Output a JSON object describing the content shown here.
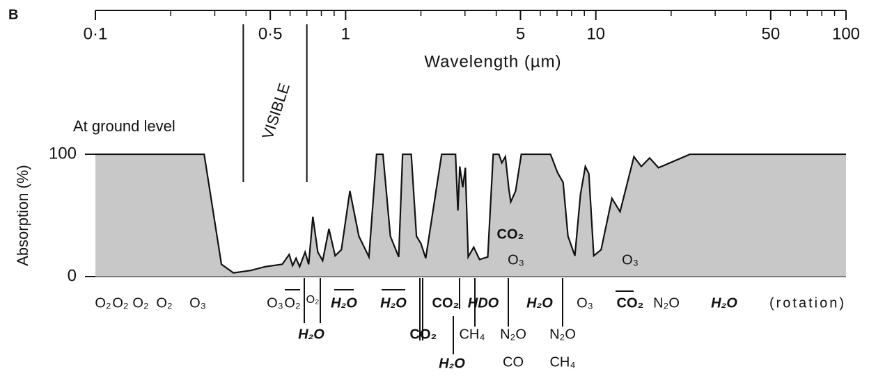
{
  "chart_data": {
    "type": "area",
    "panel_label": "B",
    "x_label": "Wavelength (µm)",
    "y_label": "Absorption (%)",
    "annotation": "At ground level",
    "visible": {
      "label": "VISIBLE",
      "range": [
        0.39,
        0.7
      ]
    },
    "x_scale": "log",
    "xlim": [
      0.1,
      100
    ],
    "xticks": [
      {
        "value": 0.1,
        "label": "0·1"
      },
      {
        "value": 0.5,
        "label": "0·5"
      },
      1,
      5,
      10,
      50,
      100
    ],
    "minor_xticks": [
      0.2,
      0.3,
      0.4,
      0.6,
      0.7,
      0.8,
      0.9,
      2,
      3,
      4,
      6,
      7,
      8,
      9,
      20,
      30,
      40,
      60,
      70,
      80,
      90
    ],
    "ylim": [
      0,
      100
    ],
    "yticks": [
      0,
      100
    ],
    "color": "#c8c8c8",
    "x": [
      0.1,
      0.272,
      0.319,
      0.356,
      0.418,
      0.475,
      0.558,
      0.595,
      0.614,
      0.634,
      0.655,
      0.689,
      0.712,
      0.74,
      0.774,
      0.81,
      0.858,
      0.908,
      0.962,
      1.04,
      1.13,
      1.24,
      1.33,
      1.41,
      1.51,
      1.63,
      1.69,
      1.83,
      1.92,
      2.0,
      2.09,
      2.42,
      2.75,
      2.81,
      2.86,
      2.94,
      3.01,
      3.09,
      3.25,
      3.43,
      3.7,
      3.89,
      4.1,
      4.21,
      4.35,
      4.49,
      4.57,
      4.78,
      5.04,
      6.59,
      7.03,
      7.4,
      7.74,
      8.25,
      8.68,
      9.08,
      9.38,
      9.81,
      10.5,
      11.6,
      12.5,
      14.2,
      15.2,
      16.4,
      17.8,
      23.8,
      100
    ],
    "values": [
      100,
      100,
      10,
      3,
      5,
      8,
      10,
      18,
      9,
      15,
      8,
      20,
      10,
      49,
      20,
      13,
      39,
      17,
      22,
      70,
      33,
      16,
      100,
      100,
      33,
      16,
      100,
      100,
      33,
      27,
      15,
      100,
      100,
      54,
      90,
      73,
      89,
      16,
      24,
      14,
      16,
      100,
      100,
      93,
      98,
      72,
      61,
      70,
      100,
      100,
      85,
      77,
      33,
      17,
      67,
      90,
      84,
      17,
      22,
      64,
      53,
      98,
      90,
      97,
      89,
      100,
      100
    ],
    "absorbers": [
      "O₂",
      "O₂",
      "O₂",
      "O₂",
      "O₃",
      "O₃",
      "O₂",
      "O₂",
      "H₂O",
      "H₂O",
      "CO₂",
      "HDO",
      "H₂O",
      "O₃",
      "CO₂",
      "N₂O",
      "H₂O",
      "(rotation)",
      "H₂O",
      "CO₂",
      "CH₄",
      "N₂O",
      "N₂O",
      "H₂O",
      "CO",
      "CH₄",
      "CO₂",
      "O₃",
      "O₃"
    ]
  }
}
